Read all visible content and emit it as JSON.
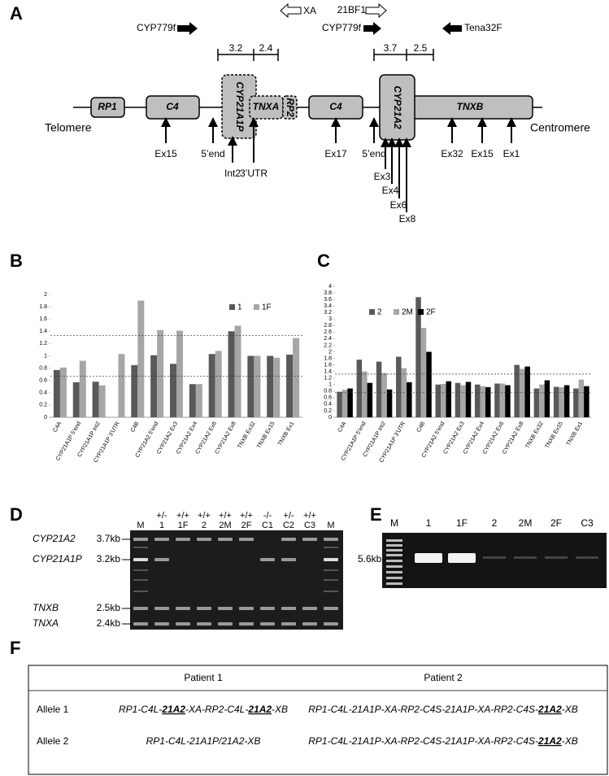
{
  "panel_labels": [
    "A",
    "B",
    "C",
    "D",
    "E",
    "F"
  ],
  "diagram": {
    "primers": [
      "XA",
      "21BF1",
      "CYP779f",
      "CYP779f",
      "Tena32F"
    ],
    "scale_labels": [
      "3.2",
      "2.4",
      "3.7",
      "2.5"
    ],
    "genes": [
      "RP1",
      "C4",
      "CYP21A1P",
      "TNXA",
      "RP2",
      "C4",
      "CYP21A2",
      "TNXB"
    ],
    "ends": [
      "Telomere",
      "Centromere"
    ],
    "probes": [
      "Ex15",
      "5’end",
      "Int2",
      "3’UTR",
      "Ex17",
      "5’end",
      "Ex3",
      "Ex4",
      "Ex6",
      "Ex8",
      "Ex32",
      "Ex15",
      "Ex1"
    ]
  },
  "chart_data": [
    {
      "type": "bar",
      "categories": [
        "C4A",
        "CYP21A1P 5'end",
        "CYP21A1P Int2",
        "CYP21A1P 3'UTR",
        "C4B",
        "CYP21A2 5'end",
        "CYP21A2 Ex3",
        "CYP21A2 Ex4",
        "CYP21A2 Ex6",
        "CYP21A2 Ex8",
        "TNXB Ex32",
        "TNXB Ex15",
        "TNXB Ex1"
      ],
      "series": [
        {
          "name": "1",
          "color": "#595959",
          "values": [
            0.77,
            0.57,
            0.58,
            null,
            0.85,
            1.01,
            0.87,
            0.54,
            1.03,
            1.4,
            1.0,
            1.0,
            1.02
          ]
        },
        {
          "name": "1F",
          "color": "#a6a6a6",
          "values": [
            0.81,
            0.92,
            0.52,
            1.03,
            1.9,
            1.42,
            1.41,
            0.54,
            1.08,
            1.49,
            1.0,
            0.97,
            1.29
          ]
        }
      ],
      "ylim": [
        0,
        2
      ],
      "yticks": [
        0,
        0.2,
        0.4,
        0.6,
        0.8,
        1,
        1.2,
        1.4,
        1.6,
        1.8,
        2
      ],
      "reference_lines": [
        1.33,
        0.67
      ],
      "legend": "top-right"
    },
    {
      "type": "bar",
      "categories": [
        "C4A",
        "CYP21A1P 5'end",
        "CYP21A1P Int2",
        "CYP21A1P 3'UTR",
        "C4B",
        "CYP21A2 5'end",
        "CYP21A2 Ex3",
        "CYP21A2 Ex4",
        "CYP21A2 Ex6",
        "CYP21A2 Ex8",
        "TNXB Ex32",
        "TNXB Ex15",
        "TNXB Ex1"
      ],
      "series": [
        {
          "name": "2",
          "color": "#595959",
          "values": [
            0.78,
            1.76,
            1.7,
            1.85,
            3.67,
            1.0,
            1.05,
            1.0,
            1.03,
            1.6,
            0.88,
            0.93,
            0.88
          ]
        },
        {
          "name": "2M",
          "color": "#a6a6a6",
          "values": [
            0.84,
            1.4,
            1.35,
            1.5,
            2.73,
            1.02,
            0.98,
            0.95,
            1.03,
            1.48,
            1.0,
            0.92,
            1.15
          ]
        },
        {
          "name": "2F",
          "color": "#000000",
          "values": [
            0.88,
            1.05,
            0.85,
            1.07,
            2.0,
            1.1,
            1.08,
            0.92,
            0.98,
            1.55,
            1.13,
            0.98,
            0.95
          ]
        }
      ],
      "ylim": [
        0,
        4
      ],
      "yticks": [
        0,
        0.2,
        0.4,
        0.6,
        0.8,
        1,
        1.2,
        1.4,
        1.6,
        1.8,
        2,
        2.2,
        2.4,
        2.6,
        2.8,
        3,
        3.2,
        3.4,
        3.6,
        3.8,
        4
      ],
      "reference_lines": [
        1.32,
        0.75
      ],
      "legend": "top-left"
    }
  ],
  "gel_d": {
    "genotypes": [
      "+/-",
      "+/+",
      "+/+",
      "+/+",
      "+/+",
      "-/-",
      "+/-",
      "+/+"
    ],
    "lanes": [
      "M",
      "1",
      "1F",
      "2",
      "2M",
      "2F",
      "C1",
      "C2",
      "C3",
      "M"
    ],
    "bands": [
      {
        "name": "CYP21A2",
        "size": "3.7kb"
      },
      {
        "name": "CYP21A1P",
        "size": "3.2kb"
      },
      {
        "name": "TNXB",
        "size": "2.5kb"
      },
      {
        "name": "TNXA",
        "size": "2.4kb"
      }
    ]
  },
  "gel_e": {
    "lanes": [
      "M",
      "1",
      "1F",
      "2",
      "2M",
      "2F",
      "C3"
    ],
    "band": "5.6kb"
  },
  "table": {
    "header": [
      "Patient 1",
      "Patient 2"
    ],
    "rows": [
      {
        "label": "Allele 1",
        "cells": [
          {
            "segments": [
              "RP1-C4L-",
              "21A2",
              "-XA-RP2-C4L-",
              "21A2",
              "-XB"
            ],
            "bold": [
              1,
              3
            ]
          },
          {
            "segments": [
              "RP1-C4L-21A1P-XA-RP2-C4S-21A1P-XA-RP2-C4S-",
              "21A2",
              "-XB"
            ],
            "bold": [
              1
            ]
          }
        ]
      },
      {
        "label": "Allele 2",
        "cells": [
          {
            "segments": [
              "RP1-C4L-21A1P/21A2-XB"
            ]
          },
          {
            "segments": [
              "RP1-C4L-21A1P-XA-RP2-C4S-21A1P-XA-RP2-C4S-",
              "21A2",
              "-XB"
            ],
            "bold": [
              1
            ]
          }
        ]
      }
    ]
  }
}
